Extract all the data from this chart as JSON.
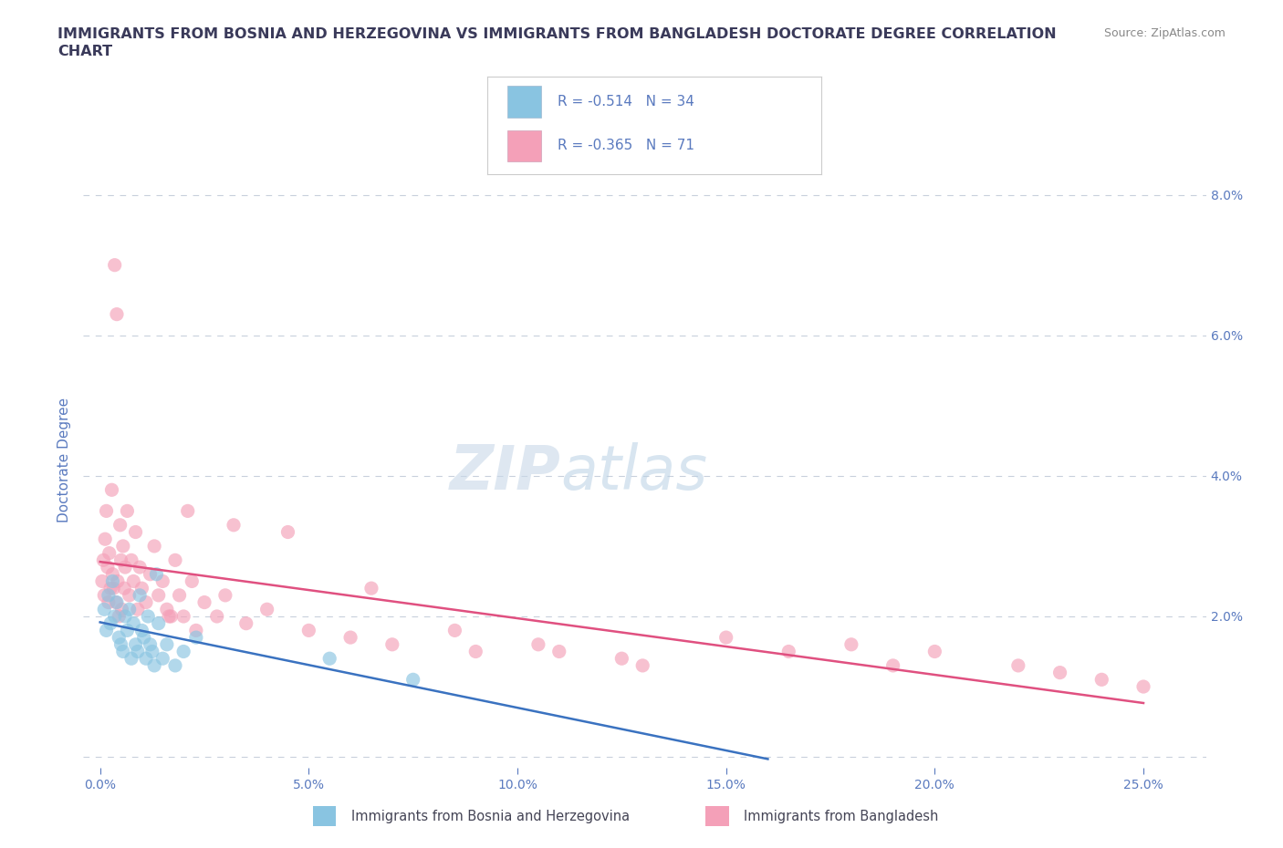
{
  "title": "IMMIGRANTS FROM BOSNIA AND HERZEGOVINA VS IMMIGRANTS FROM BANGLADESH DOCTORATE DEGREE CORRELATION\nCHART",
  "source": "Source: ZipAtlas.com",
  "ylabel_left": "Doctorate Degree",
  "blue_color": "#89c4e1",
  "pink_color": "#f4a0b8",
  "blue_line_color": "#3a72c0",
  "pink_line_color": "#e05080",
  "title_color": "#3a3a5a",
  "axis_color": "#5a7abf",
  "bottom_legend_color": "#444455",
  "bosnia_x": [
    0.1,
    0.15,
    0.2,
    0.25,
    0.3,
    0.35,
    0.4,
    0.45,
    0.5,
    0.55,
    0.6,
    0.65,
    0.7,
    0.75,
    0.8,
    0.85,
    0.9,
    0.95,
    1.0,
    1.05,
    1.1,
    1.15,
    1.2,
    1.25,
    1.3,
    1.35,
    1.4,
    1.5,
    1.6,
    1.8,
    2.0,
    2.3,
    5.5,
    7.5
  ],
  "bosnia_y": [
    2.1,
    1.8,
    2.3,
    1.9,
    2.5,
    2.0,
    2.2,
    1.7,
    1.6,
    1.5,
    2.0,
    1.8,
    2.1,
    1.4,
    1.9,
    1.6,
    1.5,
    2.3,
    1.8,
    1.7,
    1.4,
    2.0,
    1.6,
    1.5,
    1.3,
    2.6,
    1.9,
    1.4,
    1.6,
    1.3,
    1.5,
    1.7,
    1.4,
    1.1
  ],
  "bangladesh_x": [
    0.05,
    0.08,
    0.1,
    0.12,
    0.15,
    0.18,
    0.2,
    0.22,
    0.25,
    0.28,
    0.3,
    0.32,
    0.35,
    0.38,
    0.4,
    0.42,
    0.45,
    0.48,
    0.5,
    0.52,
    0.55,
    0.58,
    0.6,
    0.65,
    0.7,
    0.75,
    0.8,
    0.85,
    0.9,
    0.95,
    1.0,
    1.1,
    1.2,
    1.3,
    1.4,
    1.5,
    1.6,
    1.7,
    1.8,
    1.9,
    2.0,
    2.2,
    2.5,
    2.8,
    3.0,
    3.5,
    4.0,
    5.0,
    6.0,
    7.0,
    9.0,
    11.0,
    13.0,
    15.0,
    18.0,
    20.0,
    22.0,
    24.0,
    1.65,
    2.3,
    4.5,
    6.5,
    8.5,
    10.5,
    12.5,
    16.5,
    19.0,
    23.0,
    25.0,
    2.1,
    3.2
  ],
  "bangladesh_y": [
    2.5,
    2.8,
    2.3,
    3.1,
    3.5,
    2.7,
    2.2,
    2.9,
    2.4,
    3.8,
    2.6,
    2.4,
    7.0,
    2.2,
    6.3,
    2.5,
    2.0,
    3.3,
    2.8,
    2.1,
    3.0,
    2.4,
    2.7,
    3.5,
    2.3,
    2.8,
    2.5,
    3.2,
    2.1,
    2.7,
    2.4,
    2.2,
    2.6,
    3.0,
    2.3,
    2.5,
    2.1,
    2.0,
    2.8,
    2.3,
    2.0,
    2.5,
    2.2,
    2.0,
    2.3,
    1.9,
    2.1,
    1.8,
    1.7,
    1.6,
    1.5,
    1.5,
    1.3,
    1.7,
    1.6,
    1.5,
    1.3,
    1.1,
    2.0,
    1.8,
    3.2,
    2.4,
    1.8,
    1.6,
    1.4,
    1.5,
    1.3,
    1.2,
    1.0,
    3.5,
    3.3
  ]
}
